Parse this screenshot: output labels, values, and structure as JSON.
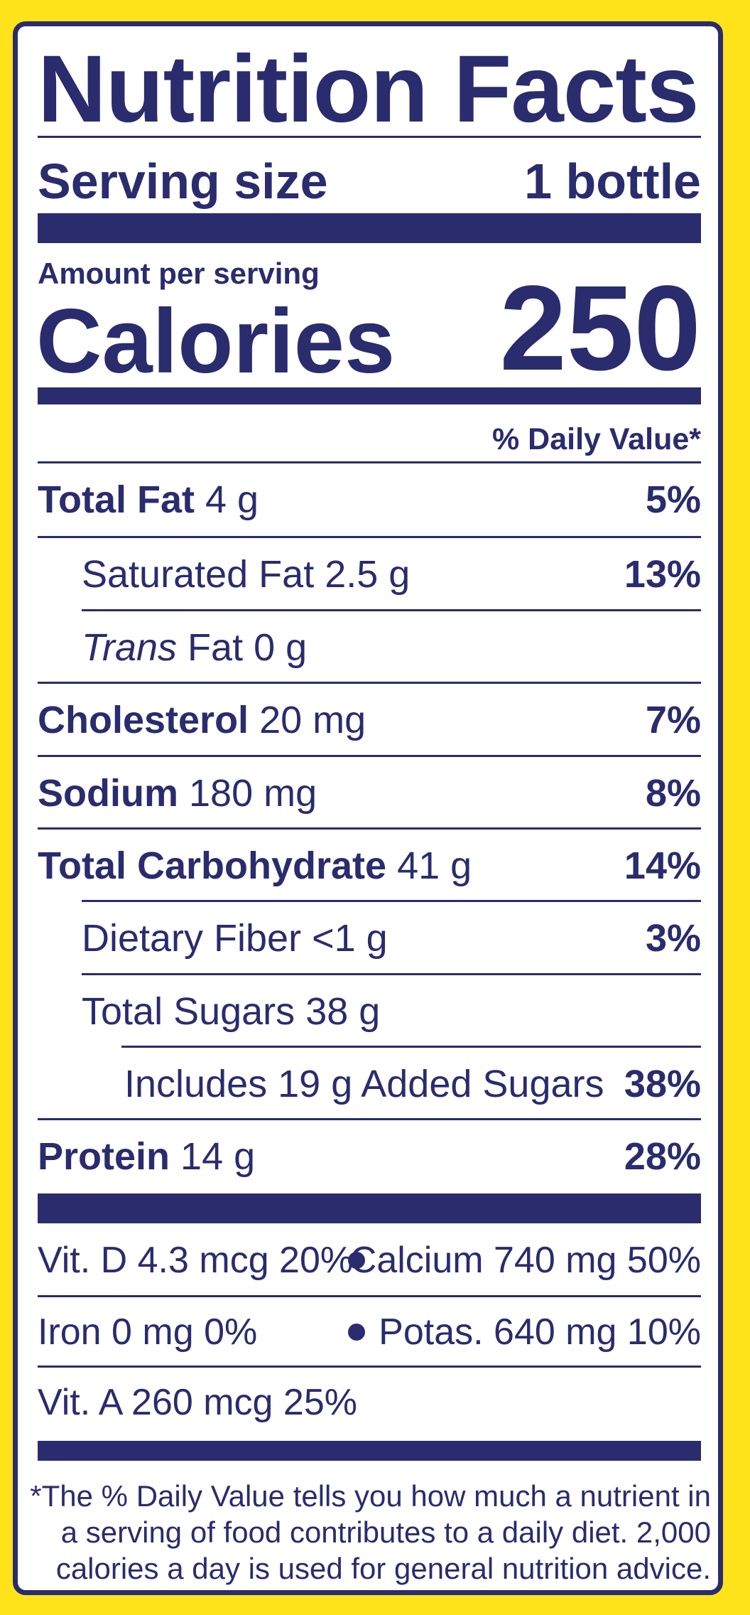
{
  "title": "Nutrition Facts",
  "serving": {
    "label": "Serving size",
    "value": "1 bottle"
  },
  "amount_per_serving": "Amount per serving",
  "calories": {
    "label": "Calories",
    "value": "250"
  },
  "daily_value_header": "% Daily Value*",
  "nutrients": [
    {
      "name": "Total Fat",
      "amount": "4 g",
      "dv": "5%"
    },
    {
      "name": "Saturated Fat",
      "amount": "2.5 g",
      "dv": "13%"
    },
    {
      "name_italic": "Trans",
      "name": "Fat",
      "amount": "0 g",
      "dv": ""
    },
    {
      "name": "Cholesterol",
      "amount": "20 mg",
      "dv": "7%"
    },
    {
      "name": "Sodium",
      "amount": "180 mg",
      "dv": "8%"
    },
    {
      "name": "Total Carbohydrate",
      "amount": "41 g",
      "dv": "14%"
    },
    {
      "name": "Dietary Fiber",
      "amount": "<1 g",
      "dv": "3%"
    },
    {
      "name": "Total Sugars",
      "amount": "38 g",
      "dv": ""
    },
    {
      "text": "Includes 19 g Added Sugars",
      "dv": "38%"
    },
    {
      "name": "Protein",
      "amount": "14 g",
      "dv": "28%"
    }
  ],
  "vitamins": [
    {
      "left": "Vit. D 4.3 mcg 20%",
      "right": "Calcium 740 mg 50%"
    },
    {
      "left": "Iron 0 mg 0%",
      "right": "Potas. 640 mg 10%"
    },
    {
      "left": "Vit. A 260 mcg 25%",
      "right": ""
    }
  ],
  "footnote": [
    "*The % Daily Value tells you how much a nutrient in",
    "a serving of food contributes to a daily diet. 2,000",
    "calories a day is used for general nutrition advice."
  ],
  "colors": {
    "ink": "#2A2C6E",
    "background": "#FFE31A",
    "panel": "#FFFFFF"
  }
}
